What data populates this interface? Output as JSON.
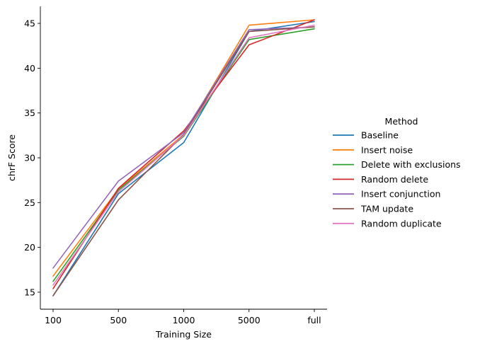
{
  "chart_data": {
    "type": "line",
    "title": "",
    "xlabel": "Training Size",
    "ylabel": "chrF Score",
    "categories": [
      "100",
      "500",
      "1000",
      "5000",
      "full"
    ],
    "yticks": [
      15,
      20,
      25,
      30,
      35,
      40,
      45
    ],
    "ylim": [
      13.1,
      46.9
    ],
    "grid": false,
    "legend": {
      "title": "Method",
      "placement": "right"
    },
    "series": [
      {
        "name": "Baseline",
        "color": "#1f77b4",
        "values": [
          14.6,
          26.0,
          31.7,
          44.1,
          45.2
        ]
      },
      {
        "name": "Insert noise",
        "color": "#ff7f0e",
        "values": [
          16.8,
          26.5,
          32.6,
          44.8,
          45.4
        ]
      },
      {
        "name": "Delete with exclusions",
        "color": "#2ca02c",
        "values": [
          16.2,
          26.4,
          32.4,
          43.2,
          44.4
        ]
      },
      {
        "name": "Random delete",
        "color": "#d62728",
        "values": [
          15.4,
          26.6,
          33.0,
          42.6,
          45.4
        ]
      },
      {
        "name": "Insert conjunction",
        "color": "#9467bd",
        "values": [
          17.7,
          27.4,
          32.8,
          44.3,
          44.6
        ]
      },
      {
        "name": "TAM update",
        "color": "#8c564b",
        "values": [
          14.6,
          25.3,
          32.6,
          44.1,
          44.6
        ]
      },
      {
        "name": "Random duplicate",
        "color": "#e377c2",
        "values": [
          15.8,
          26.2,
          32.5,
          43.4,
          44.8
        ]
      }
    ]
  }
}
